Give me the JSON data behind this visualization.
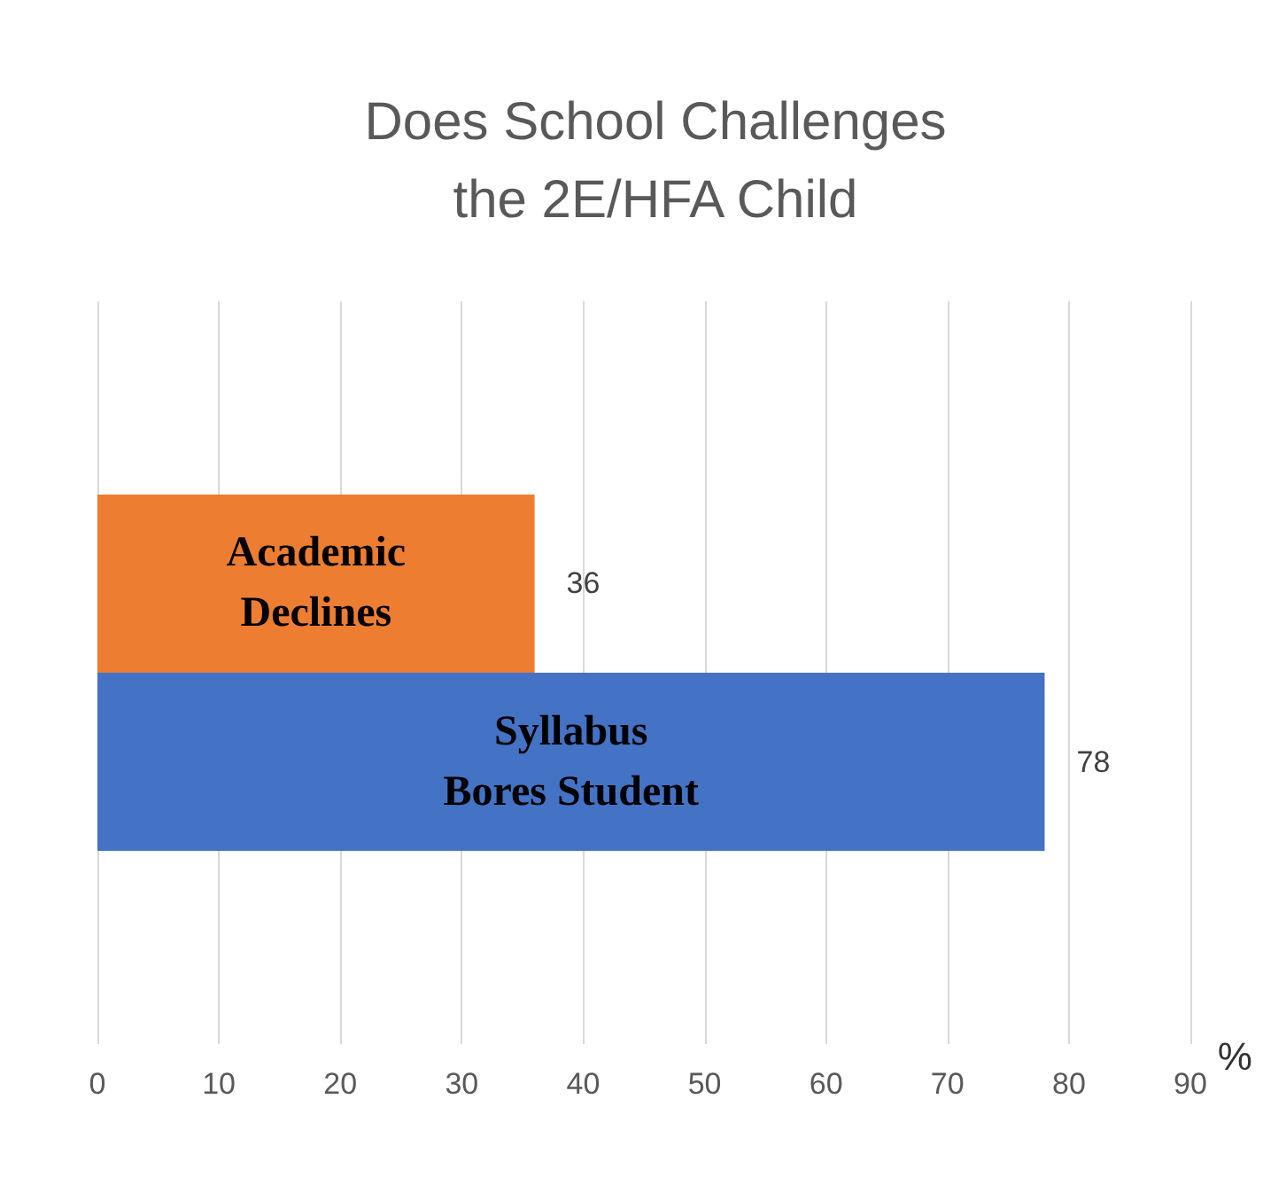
{
  "chart_data": {
    "type": "bar",
    "orientation": "horizontal",
    "title": "Does School Challenges\nthe 2E/HFA Child",
    "xlabel": "%",
    "categories": [
      null
    ],
    "series": [
      {
        "name": "Academic\nDeclines",
        "color": "#ed7d31",
        "values": [
          36
        ]
      },
      {
        "name": "Syllabus\nBores Student",
        "color": "#4472c4",
        "values": [
          78
        ]
      }
    ],
    "xlim": [
      0,
      90
    ],
    "xticks": [
      0,
      10,
      20,
      30,
      40,
      50,
      60,
      70,
      80,
      90
    ],
    "grid": "x",
    "data_labels": true,
    "legend": false
  }
}
